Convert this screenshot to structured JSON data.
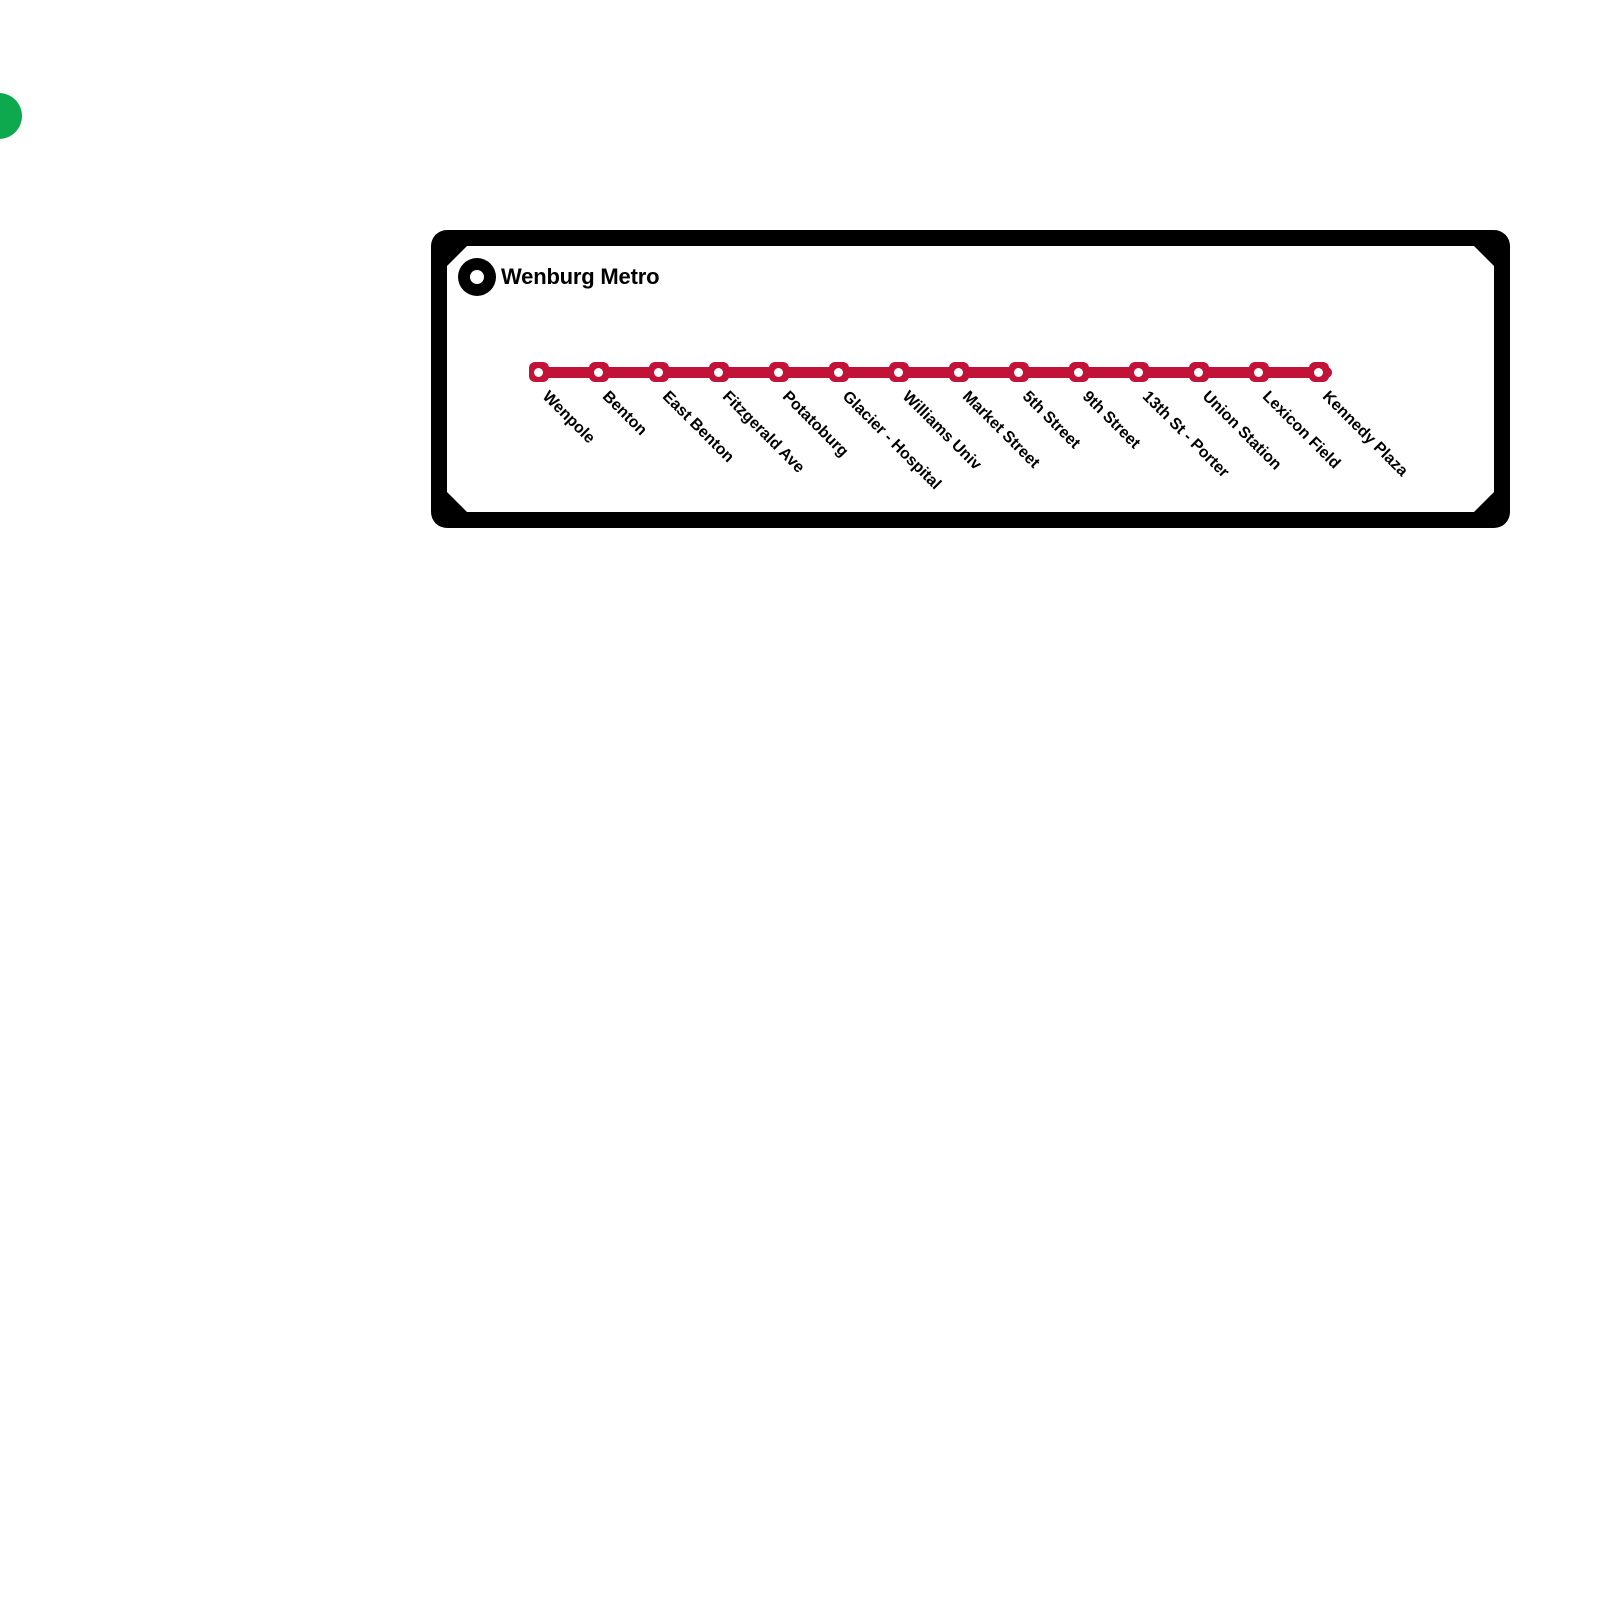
{
  "page": {
    "background": "#ffffff"
  },
  "decoration": {
    "green_dot": {
      "color": "#0EA94E"
    }
  },
  "card": {
    "title": "Wenburg Metro",
    "colors": {
      "border": "#000000",
      "background": "#ffffff",
      "logo": "#000000"
    }
  },
  "line": {
    "color": "#C31238",
    "stations": [
      "Wenpole",
      "Benton",
      "East Benton",
      "Fitzgerald Ave",
      "Potatoburg",
      "Glacier - Hospital",
      "Williams Univ",
      "Market Street",
      "5th Street",
      "9th Street",
      "13th St - Porter",
      "Union Station",
      "Lexicon Field",
      "Kennedy Plaza"
    ]
  }
}
